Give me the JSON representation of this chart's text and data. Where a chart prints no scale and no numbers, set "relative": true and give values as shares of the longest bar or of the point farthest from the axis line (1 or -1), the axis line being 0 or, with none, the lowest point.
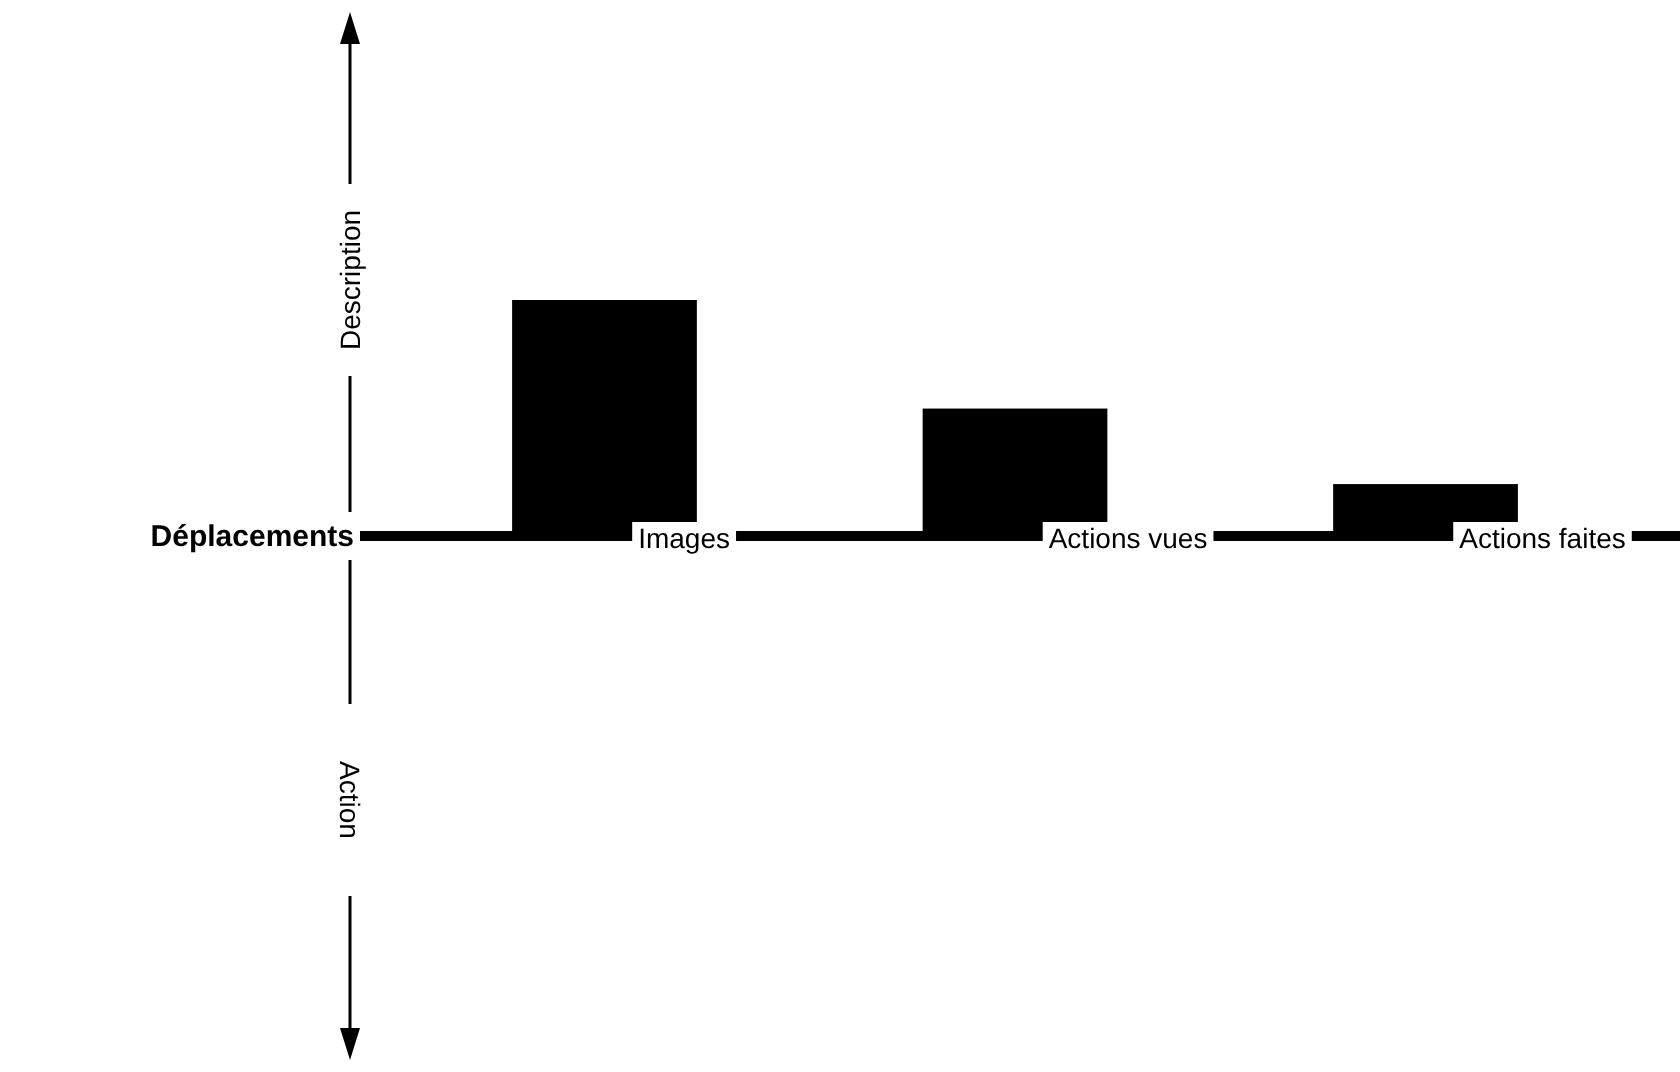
{
  "chart_data": {
    "type": "bar",
    "relative": true,
    "xlabel": "Déplacements",
    "ylabel": "Description",
    "annotations": [
      "Action"
    ],
    "categories": [
      "Images",
      "Actions vues",
      "Actions faites"
    ],
    "values": [
      1,
      0.54,
      0.22
    ],
    "color": "#000000"
  }
}
